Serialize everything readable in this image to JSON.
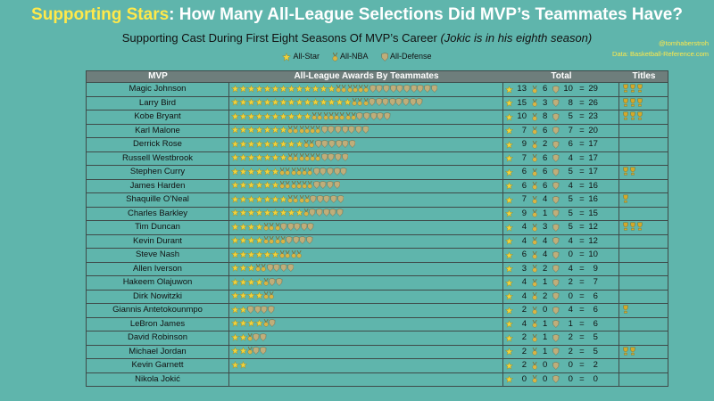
{
  "title": {
    "lead": "Supporting Stars",
    "rest": ": How Many All-League Selections Did MVP’s Teammates Have?"
  },
  "subtitle": {
    "main": "Supporting Cast During First Eight Seasons Of MVP’s Career",
    "note": "(Jokic is in his eighth season)"
  },
  "credit": {
    "handle": "@tomhaberstroh",
    "source": "Data: Basketball-Reference.com"
  },
  "legend": [
    {
      "label": "All-Star",
      "icon": "star-icon"
    },
    {
      "label": "All-NBA",
      "icon": "medal-icon"
    },
    {
      "label": "All-Defense",
      "icon": "shield-icon"
    }
  ],
  "colors": {
    "background": "#5fb5ac",
    "title_lead": "#ffe94a",
    "header": "#6e7e7c",
    "star": "#f2d23a",
    "medal": "#d9b544",
    "defense": "#bfae7a",
    "trophy": "#d4a829"
  },
  "headers": {
    "mvp": "MVP",
    "awards": "All-League Awards By Teammates",
    "total": "Total",
    "titles": "Titles"
  },
  "chart_data": {
    "type": "table",
    "title": "Supporting Stars: How Many All-League Selections Did MVP’s Teammates Have?",
    "subtitle": "Supporting Cast During First Eight Seasons Of MVP’s Career (Jokic is in his eighth season)",
    "columns": [
      "MVP",
      "All-League Awards By Teammates",
      "Total",
      "Titles"
    ],
    "rows": [
      {
        "mvp": "Magic Johnson",
        "all_star": 13,
        "all_nba": 6,
        "all_defense": 10,
        "total": 29,
        "titles": 3
      },
      {
        "mvp": "Larry Bird",
        "all_star": 15,
        "all_nba": 3,
        "all_defense": 8,
        "total": 26,
        "titles": 3
      },
      {
        "mvp": "Kobe Bryant",
        "all_star": 10,
        "all_nba": 8,
        "all_defense": 5,
        "total": 23,
        "titles": 3
      },
      {
        "mvp": "Karl Malone",
        "all_star": 7,
        "all_nba": 6,
        "all_defense": 7,
        "total": 20,
        "titles": 0
      },
      {
        "mvp": "Derrick Rose",
        "all_star": 9,
        "all_nba": 2,
        "all_defense": 6,
        "total": 17,
        "titles": 0
      },
      {
        "mvp": "Russell Westbrook",
        "all_star": 7,
        "all_nba": 6,
        "all_defense": 4,
        "total": 17,
        "titles": 0
      },
      {
        "mvp": "Stephen Curry",
        "all_star": 6,
        "all_nba": 6,
        "all_defense": 5,
        "total": 17,
        "titles": 2
      },
      {
        "mvp": "James Harden",
        "all_star": 6,
        "all_nba": 6,
        "all_defense": 4,
        "total": 16,
        "titles": 0
      },
      {
        "mvp": "Shaquille O’Neal",
        "all_star": 7,
        "all_nba": 4,
        "all_defense": 5,
        "total": 16,
        "titles": 1
      },
      {
        "mvp": "Charles Barkley",
        "all_star": 9,
        "all_nba": 1,
        "all_defense": 5,
        "total": 15,
        "titles": 0
      },
      {
        "mvp": "Tim Duncan",
        "all_star": 4,
        "all_nba": 3,
        "all_defense": 5,
        "total": 12,
        "titles": 3
      },
      {
        "mvp": "Kevin Durant",
        "all_star": 4,
        "all_nba": 4,
        "all_defense": 4,
        "total": 12,
        "titles": 0
      },
      {
        "mvp": "Steve Nash",
        "all_star": 6,
        "all_nba": 4,
        "all_defense": 0,
        "total": 10,
        "titles": 0
      },
      {
        "mvp": "Allen Iverson",
        "all_star": 3,
        "all_nba": 2,
        "all_defense": 4,
        "total": 9,
        "titles": 0
      },
      {
        "mvp": "Hakeem Olajuwon",
        "all_star": 4,
        "all_nba": 1,
        "all_defense": 2,
        "total": 7,
        "titles": 0
      },
      {
        "mvp": "Dirk Nowitzki",
        "all_star": 4,
        "all_nba": 2,
        "all_defense": 0,
        "total": 6,
        "titles": 0
      },
      {
        "mvp": "Giannis Antetokounmpo",
        "all_star": 2,
        "all_nba": 0,
        "all_defense": 4,
        "total": 6,
        "titles": 1
      },
      {
        "mvp": "LeBron James",
        "all_star": 4,
        "all_nba": 1,
        "all_defense": 1,
        "total": 6,
        "titles": 0
      },
      {
        "mvp": "David Robinson",
        "all_star": 2,
        "all_nba": 1,
        "all_defense": 2,
        "total": 5,
        "titles": 0
      },
      {
        "mvp": "Michael Jordan",
        "all_star": 2,
        "all_nba": 1,
        "all_defense": 2,
        "total": 5,
        "titles": 2
      },
      {
        "mvp": "Kevin Garnett",
        "all_star": 2,
        "all_nba": 0,
        "all_defense": 0,
        "total": 2,
        "titles": 0
      },
      {
        "mvp": "Nikola Jokić",
        "all_star": 0,
        "all_nba": 0,
        "all_defense": 0,
        "total": 0,
        "titles": 0
      }
    ]
  }
}
